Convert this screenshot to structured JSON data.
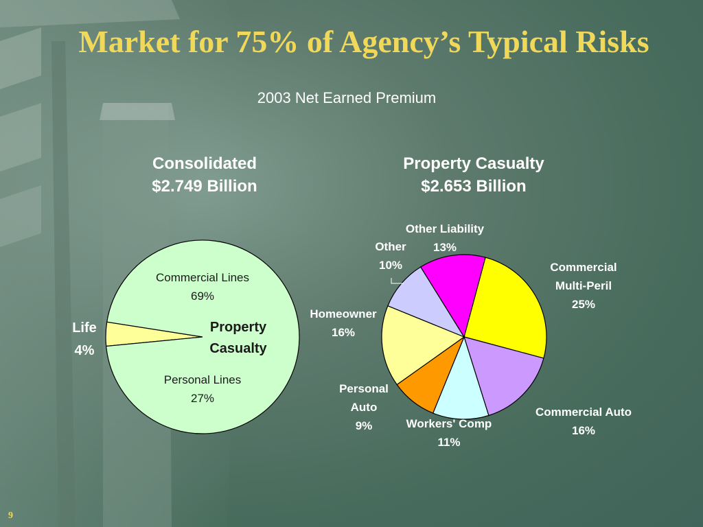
{
  "slide": {
    "title": "Market for 75% of Agency’s Typical Risks",
    "subtitle": "2003 Net Earned Premium",
    "page_number": "9"
  },
  "colors": {
    "title": "#f0d85a",
    "background": "#476b5c"
  },
  "chart_data": [
    {
      "type": "pie",
      "title_line1": "Consolidated",
      "title_line2": "$2.749 Billion",
      "slices": [
        {
          "label": "Life",
          "value": 4,
          "value_text": "4%",
          "color": "#ffff99"
        },
        {
          "label": "Property Casualty",
          "value": 96,
          "value_text": "",
          "color": "#ccffcc"
        }
      ],
      "annotations": [
        {
          "line1": "Commercial Lines",
          "line2": "69%"
        },
        {
          "line1": "Personal Lines",
          "line2": "27%"
        }
      ]
    },
    {
      "type": "pie",
      "title_line1": "Property Casualty",
      "title_line2": "$2.653 Billion",
      "slices": [
        {
          "label": "Commercial Multi-Peril",
          "line1": "Commercial",
          "line2": "Multi-Peril",
          "value": 25,
          "value_text": "25%",
          "color": "#ffff00"
        },
        {
          "label": "Commercial Auto",
          "line1": "Commercial Auto",
          "value": 16,
          "value_text": "16%",
          "color": "#cc99ff"
        },
        {
          "label": "Workers' Comp",
          "line1": "Workers' Comp",
          "value": 11,
          "value_text": "11%",
          "color": "#ccffff"
        },
        {
          "label": "Personal Auto",
          "line1": "Personal",
          "line2": "Auto",
          "value": 9,
          "value_text": "9%",
          "color": "#ff9900"
        },
        {
          "label": "Homeowner",
          "line1": "Homeowner",
          "value": 16,
          "value_text": "16%",
          "color": "#ffff99"
        },
        {
          "label": "Other",
          "line1": "Other",
          "value": 10,
          "value_text": "10%",
          "color": "#ccccff"
        },
        {
          "label": "Other Liability",
          "line1": "Other Liability",
          "value": 13,
          "value_text": "13%",
          "color": "#ff00ff"
        }
      ]
    }
  ]
}
